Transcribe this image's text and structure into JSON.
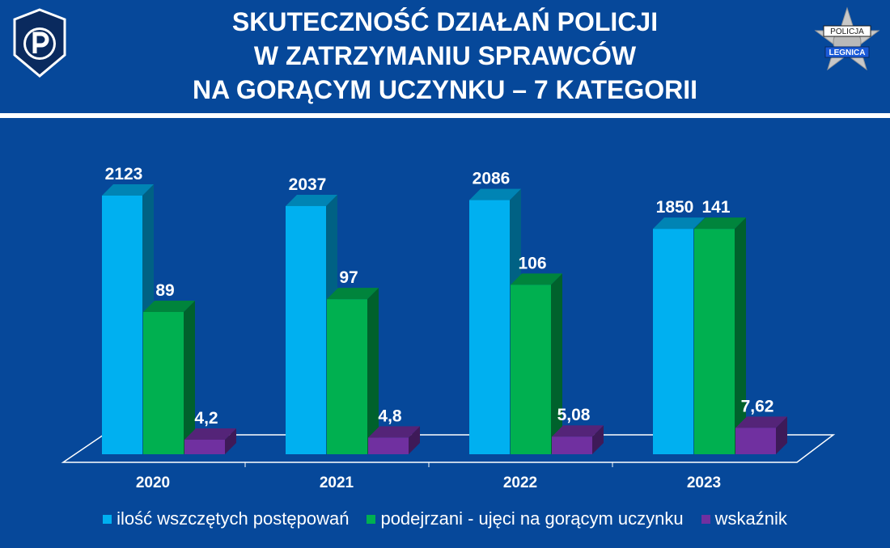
{
  "header": {
    "title_lines": [
      "SKUTECZNOŚĆ DZIAŁAŃ POLICJI",
      "W ZATRZYMANIU SPRAWCÓW",
      "NA GORĄCYM UCZYNKU – 7 KATEGORII"
    ],
    "left_logo_icon": "police-p-shield-icon",
    "right_logo_icon": "policja-legnica-star-badge-icon",
    "right_logo_text": [
      "POLICJA",
      "LEGNICA"
    ]
  },
  "colors": {
    "background": "#06489a",
    "series": [
      "#00b0f0",
      "#00b050",
      "#7030a0"
    ]
  },
  "chart_data": {
    "type": "bar",
    "categories": [
      "2020",
      "2021",
      "2022",
      "2023"
    ],
    "series": [
      {
        "name": "ilość wszczętych postępowań",
        "values": [
          2123,
          2037,
          2086,
          1850
        ],
        "labels": [
          "2123",
          "2037",
          "2086",
          "1850"
        ]
      },
      {
        "name": "podejrzani - ujęci na gorącym uczynku",
        "values": [
          89,
          97,
          106,
          141
        ],
        "labels": [
          "89",
          "97",
          "106",
          "141"
        ]
      },
      {
        "name": "wskaźnik",
        "values": [
          4.2,
          4.8,
          5.08,
          7.62
        ],
        "labels": [
          "4,2",
          "4,8",
          "5,08",
          "7,62"
        ]
      }
    ],
    "title": "SKUTECZNOŚĆ DZIAŁAŃ POLICJI W ZATRZYMANIU SPRAWCÓW NA GORĄCYM UCZYNKU – 7 KATEGORII",
    "xlabel": "",
    "ylabel": "",
    "legend": "bottom",
    "grid": false,
    "three_d": true
  }
}
